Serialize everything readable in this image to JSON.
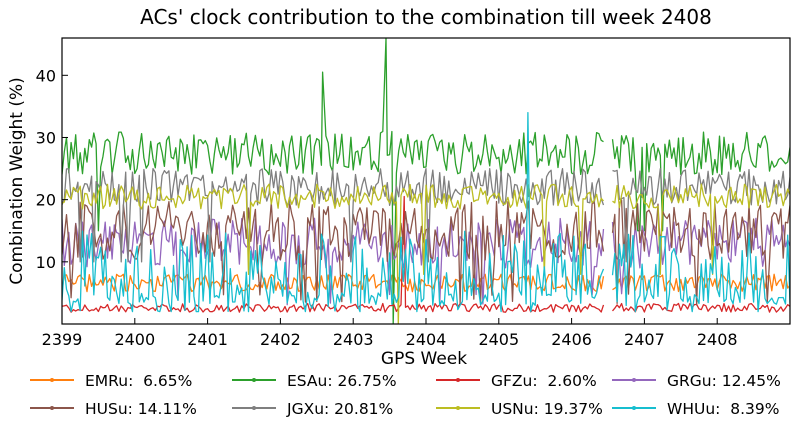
{
  "chart_data": {
    "type": "line",
    "title": "ACs' clock contribution to the combination till week 2408",
    "xlabel": "GPS Week",
    "ylabel": "Combination Weight (%)",
    "xlim": [
      2399,
      2409
    ],
    "ylim": [
      0,
      46
    ],
    "x_ticks": [
      2399,
      2400,
      2401,
      2402,
      2403,
      2404,
      2405,
      2406,
      2407,
      2408
    ],
    "y_ticks": [
      10,
      20,
      30,
      40
    ],
    "grid": false,
    "legend_position": "bottom",
    "legend_columns": 4,
    "sampling_per_week": 32,
    "gaps": [
      [
        2406.44,
        2406.56
      ]
    ],
    "series": [
      {
        "name": "EMRu",
        "legend": "EMRu:  6.65%",
        "color": "#ff7f0e",
        "base": 6.6,
        "noise": 1.4,
        "dropout_prob": 0.0,
        "dropout_value": 0,
        "min": 3.5,
        "max": 10.5
      },
      {
        "name": "ESAu",
        "legend": "ESAu: 26.75%",
        "color": "#2ca02c",
        "base": 27.5,
        "noise": 3.5,
        "dropout_prob": 0.01,
        "dropout_value": 2,
        "min": 15,
        "max": 40.5
      },
      {
        "name": "GFZu",
        "legend": "GFZu:  2.60%",
        "color": "#d62728",
        "base": 2.6,
        "noise": 0.7,
        "dropout_prob": 0.0,
        "dropout_value": 0,
        "min": 1,
        "max": 5
      },
      {
        "name": "GRGu",
        "legend": "GRGu: 12.45%",
        "color": "#9467bd",
        "base": 13,
        "noise": 4,
        "dropout_prob": 0.04,
        "dropout_value": 3,
        "min": 2,
        "max": 22
      },
      {
        "name": "HUSu",
        "legend": "HUSu: 14.11%",
        "color": "#8c564b",
        "base": 15,
        "noise": 5,
        "dropout_prob": 0.05,
        "dropout_value": 3,
        "min": 2,
        "max": 25
      },
      {
        "name": "JGXu",
        "legend": "JGXu: 20.81%",
        "color": "#7f7f7f",
        "base": 22,
        "noise": 3,
        "dropout_prob": 0.04,
        "dropout_value": 3,
        "min": 10,
        "max": 30
      },
      {
        "name": "USNu",
        "legend": "USNu: 19.37%",
        "color": "#bcbd22",
        "base": 20.5,
        "noise": 2,
        "dropout_prob": 0.03,
        "dropout_value": 2.5,
        "min": 8,
        "max": 31
      },
      {
        "name": "WHUu",
        "legend": "WHUu:  8.39%",
        "color": "#17becf",
        "base": 8,
        "noise": 7,
        "dropout_prob": 0.3,
        "dropout_value": 3,
        "min": 2,
        "max": 33
      }
    ],
    "spikes": [
      {
        "series": "ESAu",
        "x": 2402.58,
        "y": 40.5
      },
      {
        "series": "ESAu",
        "x": 2403.45,
        "y": 46
      },
      {
        "series": "ESAu",
        "x": 2403.55,
        "y": 0
      },
      {
        "series": "USNu",
        "x": 2403.62,
        "y": 0
      },
      {
        "series": "GFZu",
        "x": 2403.7,
        "y": 20.5
      },
      {
        "series": "HUSu",
        "x": 2401.02,
        "y": 17.5
      },
      {
        "series": "WHUu",
        "x": 2405.4,
        "y": 34
      }
    ]
  }
}
